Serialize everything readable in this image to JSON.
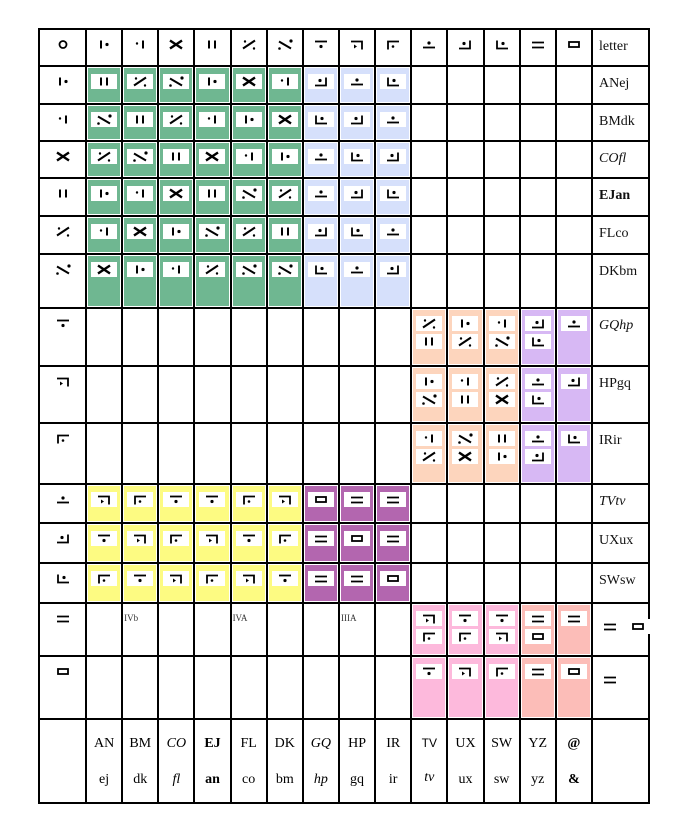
{
  "colors": {
    "G": "#6fb791",
    "B": "#d6e0fb",
    "P": "#fdd5bd",
    "L": "#d7b8f4",
    "Y": "#fdfb82",
    "M": "#b366af",
    "K": "#fdb9dc",
    "S": "#fcbdb8",
    "_": "#ffffff"
  },
  "rows": [
    {
      "head": "O",
      "label": "letter",
      "style": "",
      "cells": [
        "Id",
        "dI",
        "X",
        "II",
        "sl",
        "bs",
        "T",
        "hook",
        "corner",
        "udot",
        "jdot",
        "Ldot",
        "eq",
        "box"
      ],
      "bg": "______________"
    },
    {
      "head": "Id",
      "label": "ANej",
      "style": "",
      "cells": [
        "II",
        "sl",
        "bs",
        "Id",
        "X",
        "dI",
        "jdot",
        "udot",
        "Ldot",
        "",
        "",
        "",
        "",
        ""
      ],
      "bg": "GGGGGGBBB_____"
    },
    {
      "head": "dI",
      "label": "BMdk",
      "style": "",
      "cells": [
        "bs",
        "II",
        "sl",
        "dI",
        "Id",
        "X",
        "Ldot",
        "jdot",
        "udot",
        "",
        "",
        "",
        "",
        ""
      ],
      "bg": "GGGGGGBBB_____"
    },
    {
      "head": "X",
      "label": "COfl",
      "style": "i",
      "cells": [
        "sl",
        "bs",
        "II",
        "X",
        "dI",
        "Id",
        "udot",
        "Ldot",
        "jdot",
        "",
        "",
        "",
        "",
        ""
      ],
      "bg": "GGGGGGBBB_____"
    },
    {
      "head": "II",
      "label": "EJan",
      "style": "b",
      "cells": [
        "Id",
        "dI",
        "X",
        "II",
        "bs",
        "sl",
        "udot",
        "jdot",
        "Ldot",
        "",
        "",
        "",
        "",
        ""
      ],
      "bg": "GGGGGGBBB_____"
    },
    {
      "head": "sl",
      "label": "FLco",
      "style": "",
      "cells": [
        "dI",
        "X",
        "Id",
        "bs",
        "sl",
        "II",
        "jdot",
        "Ldot",
        "udot",
        "",
        "",
        "",
        "",
        ""
      ],
      "bg": "GGGGGGBBB_____"
    },
    {
      "head": "bs",
      "label": "DKbm",
      "style": "",
      "cells": [
        "X",
        "Id",
        "dI",
        "sl",
        "bs",
        "bs",
        "Ldot",
        "udot",
        "jdot",
        "",
        "",
        "",
        "",
        ""
      ],
      "bg": "GGGGGGBBB_____"
    },
    {
      "head": "T",
      "label": "GQhp",
      "style": "i",
      "cells": [
        "",
        "",
        "",
        "",
        "",
        "",
        "",
        "",
        "",
        "sl+II",
        "Id+sl",
        "dI+bs",
        "jdot+Ldot",
        "udot"
      ],
      "bg": "_________PPPLL"
    },
    {
      "head": "hook",
      "label": "HPgq",
      "style": "",
      "cells": [
        "",
        "",
        "",
        "",
        "",
        "",
        "",
        "",
        "",
        "Id+bs",
        "dI+II",
        "sl+X",
        "udot+Ldot",
        "jdot"
      ],
      "bg": "_________PPPLL"
    },
    {
      "head": "corner",
      "label": "IRir",
      "style": "",
      "cells": [
        "",
        "",
        "",
        "",
        "",
        "",
        "",
        "",
        "",
        "dI+sl",
        "bs+X",
        "II+Id",
        "udot+jdot",
        "Ldot"
      ],
      "bg": "_________PPPLL"
    },
    {
      "head": "udot",
      "label": "TVtv",
      "style": "i",
      "cells": [
        "hook",
        "corner",
        "T",
        "T",
        "corner",
        "hook",
        "box",
        "eq",
        "eq",
        "",
        "",
        "",
        "",
        ""
      ],
      "bg": "YYYYYYMMM_____"
    },
    {
      "head": "jdot",
      "label": "UXux",
      "style": "",
      "cells": [
        "T",
        "hook",
        "corner",
        "hook",
        "T",
        "corner",
        "eq",
        "box",
        "eq",
        "",
        "",
        "",
        "",
        ""
      ],
      "bg": "YYYYYYMMM_____"
    },
    {
      "head": "Ldot",
      "label": "SWsw",
      "style": "",
      "cells": [
        "corner",
        "T",
        "hook",
        "corner",
        "hook",
        "T",
        "eq",
        "eq",
        "box",
        "",
        "",
        "",
        "",
        ""
      ],
      "bg": "YYYYYYMMM_____"
    },
    {
      "head": "eq",
      "labelGlyph": "eq+box",
      "cells": [
        "",
        "",
        "",
        "",
        "",
        "",
        "",
        "",
        "",
        "hook+corner",
        "T+corner",
        "T+hook",
        "eq+box",
        "eq"
      ],
      "bg": "_________KKKSS",
      "marks": {
        "1": "IVb",
        "4": "IVA",
        "7": "IIIA"
      }
    },
    {
      "head": "box",
      "labelGlyph": "eq",
      "cells": [
        "",
        "",
        "",
        "",
        "",
        "",
        "",
        "",
        "",
        "T",
        "hook",
        "corner",
        "eq",
        "box"
      ],
      "bg": "_________KKKSS"
    }
  ],
  "bottom": [
    {
      "top": "AN",
      "bot": "ej",
      "style": ""
    },
    {
      "top": "BM",
      "bot": "dk",
      "style": ""
    },
    {
      "top": "CO",
      "bot": "fl",
      "style": "i"
    },
    {
      "top": "EJ",
      "bot": "an",
      "style": "b"
    },
    {
      "top": "FL",
      "bot": "co",
      "style": ""
    },
    {
      "top": "DK",
      "bot": "bm",
      "style": ""
    },
    {
      "top": "GQ",
      "bot": "hp",
      "style": "i"
    },
    {
      "top": "HP",
      "bot": "gq",
      "style": ""
    },
    {
      "top": "IR",
      "bot": "ir",
      "style": ""
    },
    {
      "top": "TV",
      "bot": "tv",
      "style": "tv"
    },
    {
      "top": "UX",
      "bot": "ux",
      "style": ""
    },
    {
      "top": "SW",
      "bot": "sw",
      "style": ""
    },
    {
      "top": "YZ",
      "bot": "yz",
      "style": ""
    },
    {
      "top": "@",
      "bot": "&",
      "style": "b"
    }
  ]
}
